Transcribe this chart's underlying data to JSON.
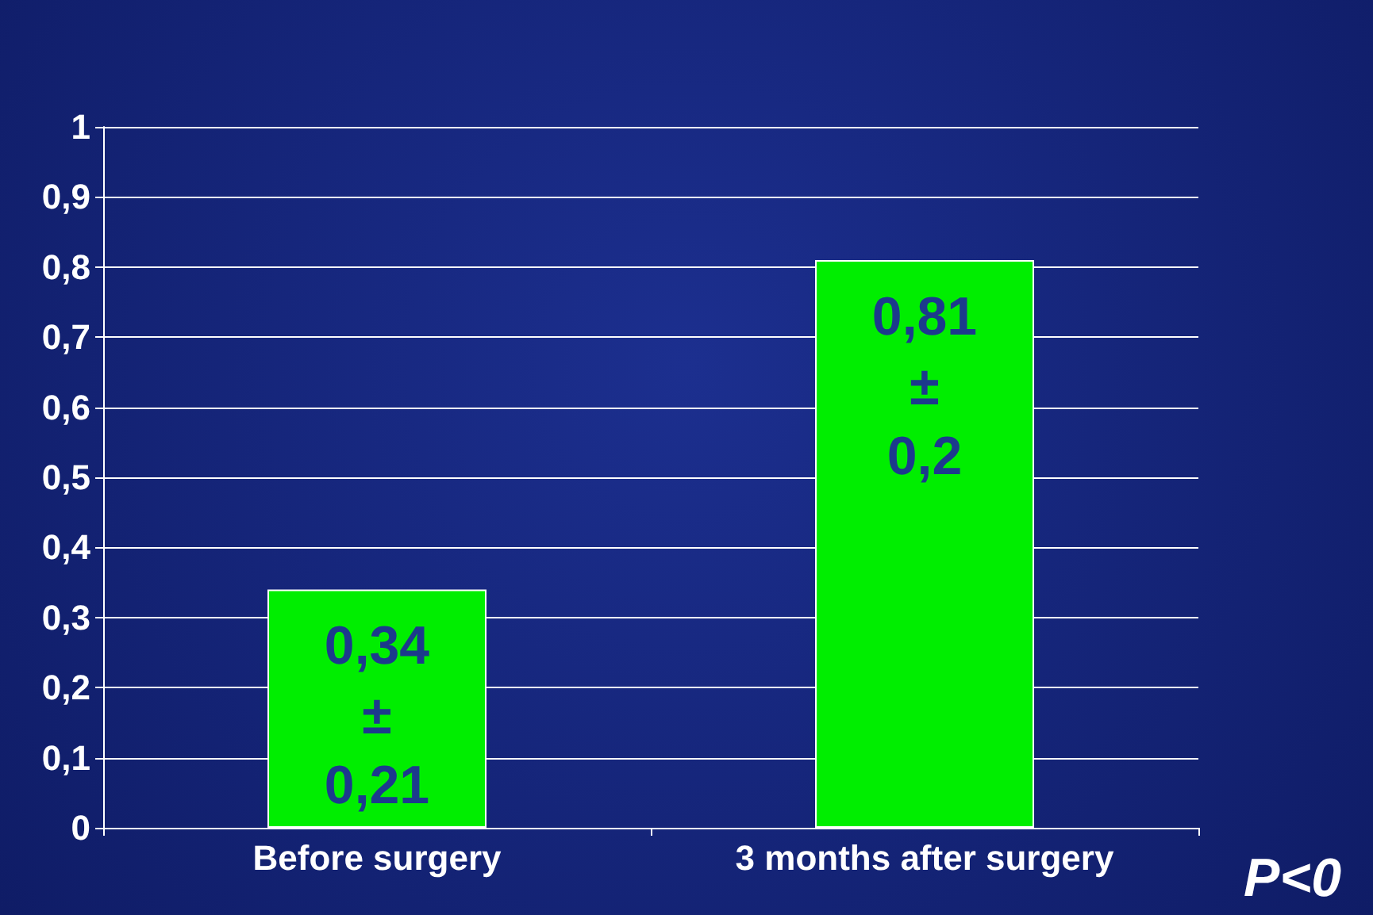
{
  "chart_data": {
    "type": "bar",
    "categories": [
      "Before surgery",
      "3 months after surgery"
    ],
    "values": [
      0.34,
      0.81
    ],
    "value_labels": [
      "0,34\n±\n0,21",
      "0,81\n±\n0,2"
    ],
    "color": "#00ee00",
    "ylim": [
      0,
      1
    ],
    "yticks": [
      0,
      {
        "value": 0.1,
        "label": "0,1"
      },
      {
        "value": 0.2,
        "label": "0,2"
      },
      {
        "value": 0.3,
        "label": "0,3"
      },
      {
        "value": 0.4,
        "label": "0,4"
      },
      {
        "value": 0.5,
        "label": "0,5"
      },
      {
        "value": 0.6,
        "label": "0,6"
      },
      {
        "value": 0.7,
        "label": "0,7"
      },
      {
        "value": 0.8,
        "label": "0,8"
      },
      {
        "value": 0.9,
        "label": "0,9"
      },
      1
    ],
    "grid": "y",
    "annotations": [
      "P<0"
    ]
  }
}
